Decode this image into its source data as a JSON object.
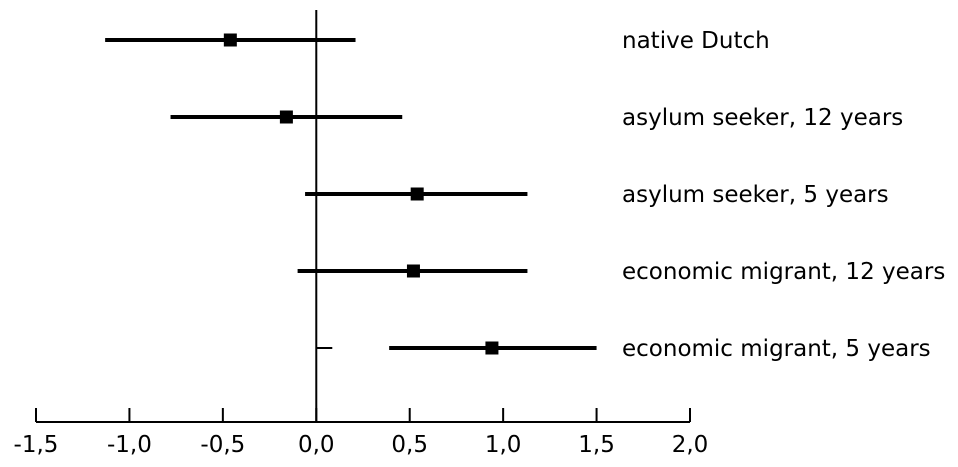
{
  "chart_data": {
    "type": "forest",
    "title": "",
    "xlabel": "",
    "ylabel": "",
    "xlim": [
      -1.5,
      2.0
    ],
    "grid": false,
    "legend": "none",
    "reference_line": 0.0,
    "ticks": [
      {
        "value": -1.5,
        "label": "-1,5"
      },
      {
        "value": -1.0,
        "label": "-1,0"
      },
      {
        "value": -0.5,
        "label": "-0,5"
      },
      {
        "value": 0.0,
        "label": "0,0"
      },
      {
        "value": 0.5,
        "label": "0,5"
      },
      {
        "value": 1.0,
        "label": "1,0"
      },
      {
        "value": 1.5,
        "label": "1,5"
      },
      {
        "value": 2.0,
        "label": "2,0"
      }
    ],
    "rows": [
      {
        "label": "native Dutch",
        "estimate": -0.46,
        "lower": -1.13,
        "upper": 0.21
      },
      {
        "label": "asylum seeker, 12 years",
        "estimate": -0.16,
        "lower": -0.78,
        "upper": 0.46
      },
      {
        "label": "asylum seeker, 5 years",
        "estimate": 0.54,
        "lower": -0.06,
        "upper": 1.13
      },
      {
        "label": "economic migrant, 12 years",
        "estimate": 0.52,
        "lower": -0.1,
        "upper": 1.13
      },
      {
        "label": "economic migrant, 5 years",
        "estimate": 0.94,
        "lower": 0.39,
        "upper": 1.5
      }
    ],
    "colors": {
      "marks": "#000000",
      "background": "#ffffff"
    }
  }
}
